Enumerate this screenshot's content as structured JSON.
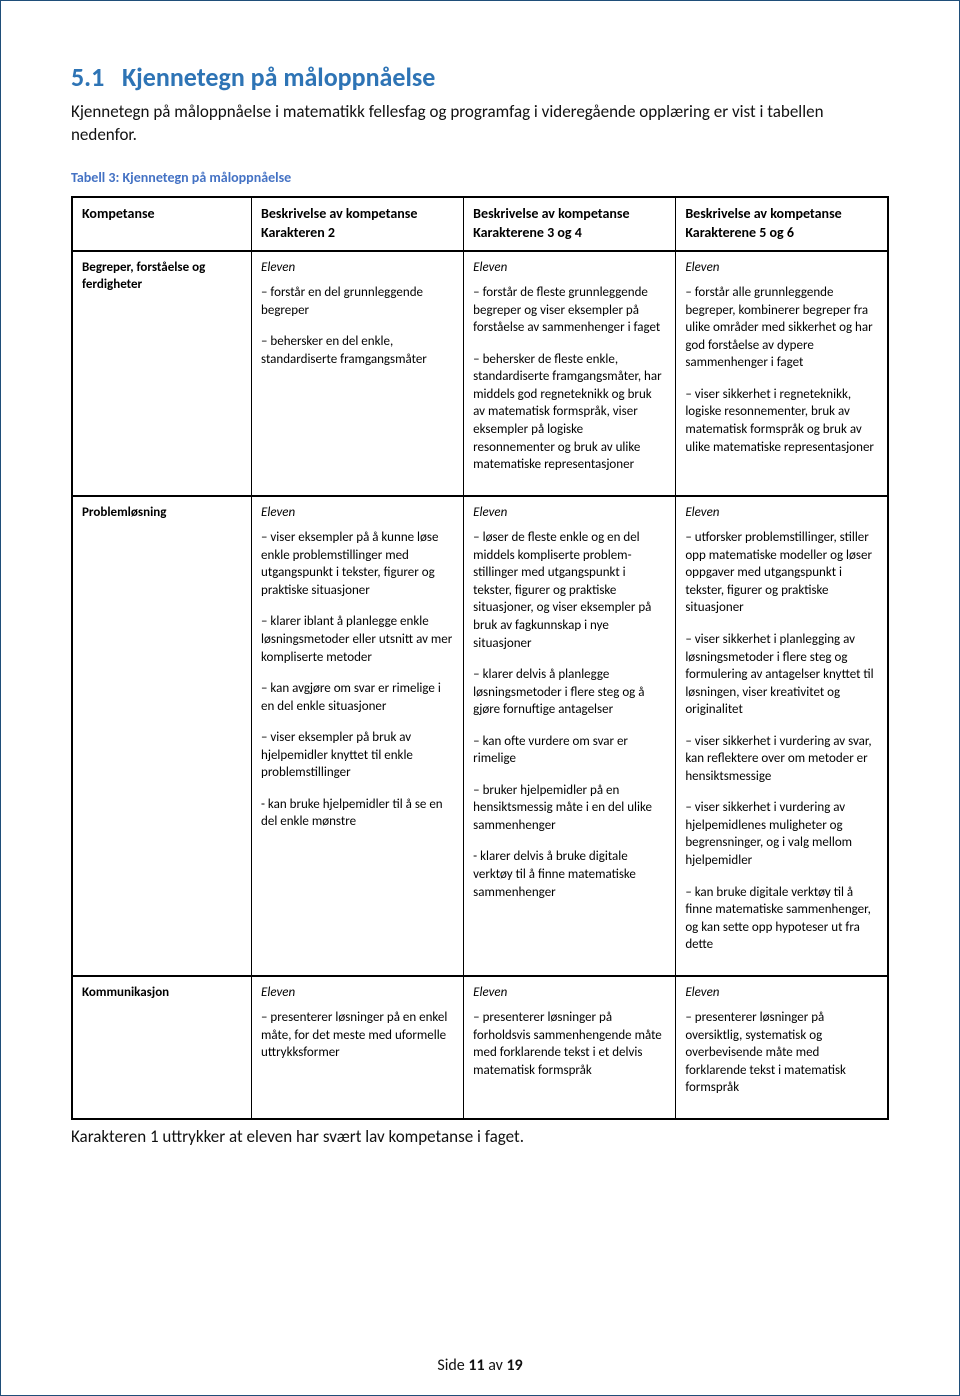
{
  "heading_number": "5.1",
  "heading_title": "Kjennetegn på måloppnåelse",
  "intro": "Kjennetegn på måloppnåelse i matematikk fellesfag og programfag i videregående opplæring er vist i tabellen nedenfor.",
  "table_caption": "Tabell 3: Kjennetegn på måloppnåelse",
  "columns": {
    "c0": "Kompetanse",
    "c1a": "Beskrivelse av kompetanse",
    "c1b": "Karakteren 2",
    "c2a": "Beskrivelse av kompetanse",
    "c2b": "Karakterene 3 og 4",
    "c3a": "Beskrivelse av kompetanse",
    "c3b": "Karakterene 5 og 6"
  },
  "row1": {
    "label": "Begreper, forståelse og ferdigheter",
    "c1_eleven": "Eleven",
    "c1_b1": "– forstår en del grunnleggende begreper",
    "c1_b2": "– behersker en del enkle, standardiserte framgangsmåter",
    "c2_eleven": "Eleven",
    "c2_b1": "– forstår de fleste grunnleggende begreper og viser eksempler på forståelse av sammenhenger i faget",
    "c2_b2": "– behersker de fleste enkle, standardiserte framgangsmåter, har middels god regneteknikk og bruk av matematisk formspråk, viser eksempler på logiske resonnementer og bruk av ulike matematiske representasjoner",
    "c3_eleven": "Eleven",
    "c3_b1": "– forstår alle grunnleggende begreper, kombinerer begreper fra ulike områder med sikkerhet og har god forståelse av dypere sammenhenger i faget",
    "c3_b2": "– viser sikkerhet i regneteknikk, logiske resonnementer, bruk av matematisk formspråk og bruk av ulike matematiske representasjoner"
  },
  "row2": {
    "label": "Problemløsning",
    "c1_eleven": "Eleven",
    "c1_b1": "– viser eksempler på å kunne løse enkle problemstillinger med utgangspunkt i tekster, figurer og praktiske situasjoner",
    "c1_b2": "– klarer iblant å planlegge enkle løsningsmetoder eller utsnitt av mer kompliserte metoder",
    "c1_b3": "– kan avgjøre om svar er rimelige i en del enkle situasjoner",
    "c1_b4": "– viser eksempler på bruk av hjelpemidler knyttet til enkle problemstillinger",
    "c1_b5": "- kan bruke hjelpemidler til å se en del enkle mønstre",
    "c2_eleven": "Eleven",
    "c2_b1": "– løser de fleste enkle og en del middels kompliserte problem-stillinger med utgangspunkt i tekster, figurer og praktiske situasjoner, og viser eksempler på bruk av fagkunnskap i nye situasjoner",
    "c2_b2": "– klarer delvis å planlegge løsningsmetoder i flere steg og å gjøre fornuftige antagelser",
    "c2_b3": "– kan ofte vurdere om svar er rimelige",
    "c2_b4": "– bruker hjelpemidler på en hensiktsmessig måte i en del ulike sammenhenger",
    "c2_b5": "- klarer delvis å bruke digitale verktøy til å finne matematiske sammenhenger",
    "c3_eleven": "Eleven",
    "c3_b1": "– utforsker problemstillinger, stiller opp matematiske modeller og løser oppgaver med utgangspunkt i tekster, figurer og praktiske situasjoner",
    "c3_b2": "– viser sikkerhet i planlegging av løsningsmetoder i flere steg og formulering av antagelser knyttet til løsningen, viser kreativitet og originalitet",
    "c3_b3": "– viser sikkerhet i vurdering av svar, kan reflektere over om metoder er hensiktsmessige",
    "c3_b4": "– viser sikkerhet i vurdering av hjelpemidlenes muligheter og begrensninger, og i valg mellom hjelpemidler",
    "c3_b5": "– kan bruke digitale verktøy til å finne matematiske sammenhenger, og kan sette opp hypoteser ut fra dette"
  },
  "row3": {
    "label": "Kommunikasjon",
    "c1_eleven": "Eleven",
    "c1_b1": "– presenterer løsninger på en enkel måte, for det meste med uformelle uttrykksformer",
    "c2_eleven": "Eleven",
    "c2_b1": "– presenterer løsninger på forholdsvis sammenhengende måte med forklarende tekst i et delvis matematisk formspråk",
    "c3_eleven": "Eleven",
    "c3_b1": "– presenterer løsninger på oversiktlig, systematisk og overbevisende måte med forklarende tekst i matematisk formspråk"
  },
  "below_table": "Karakteren 1 uttrykker at eleven har svært lav kompetanse i faget.",
  "footer_prefix": "Side ",
  "footer_current": "11",
  "footer_mid": " av ",
  "footer_total": "19"
}
